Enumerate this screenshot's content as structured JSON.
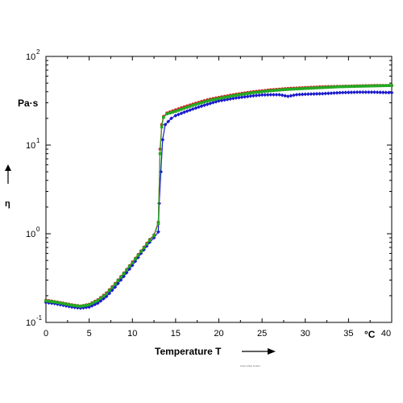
{
  "chart_data": {
    "type": "line",
    "title": "",
    "xlabel": "Temperature T",
    "ylabel": "η",
    "y_unit": "Pa·s",
    "x_unit": "°C",
    "xlim": [
      0,
      40
    ],
    "ylim": [
      0.1,
      100
    ],
    "y_scale": "log",
    "grid": false,
    "legend": "none",
    "x_ticks": [
      0,
      5,
      10,
      15,
      20,
      25,
      30,
      35,
      40
    ],
    "x_tick_labels": [
      "0",
      "5",
      "10",
      "15",
      "20",
      "25",
      "30",
      "35",
      "40"
    ],
    "y_decades": [
      {
        "value": 0.1,
        "base": "10",
        "exp": "-1"
      },
      {
        "value": 1,
        "base": "10",
        "exp": "0"
      },
      {
        "value": 10,
        "base": "10",
        "exp": "1"
      },
      {
        "value": 100,
        "base": "10",
        "exp": "2"
      }
    ],
    "credit_text": "Anton Paar GmbH",
    "series": [
      {
        "color": "#1a1acc",
        "marker": "diamond",
        "points": [
          [
            0,
            0.168
          ],
          [
            1,
            0.163
          ],
          [
            2,
            0.156
          ],
          [
            3,
            0.149
          ],
          [
            4,
            0.145
          ],
          [
            5,
            0.149
          ],
          [
            6,
            0.165
          ],
          [
            7,
            0.196
          ],
          [
            8,
            0.25
          ],
          [
            9,
            0.33
          ],
          [
            10,
            0.44
          ],
          [
            11,
            0.6
          ],
          [
            12,
            0.8
          ],
          [
            12.5,
            0.9
          ],
          [
            13,
            1.05
          ],
          [
            13.1,
            2.2
          ],
          [
            13.3,
            5.0
          ],
          [
            13.5,
            11.5
          ],
          [
            13.8,
            17
          ],
          [
            14.5,
            20
          ],
          [
            15,
            21.5
          ],
          [
            16,
            23.5
          ],
          [
            17,
            25.5
          ],
          [
            18,
            27.5
          ],
          [
            19,
            29.5
          ],
          [
            20,
            31.5
          ],
          [
            22,
            34
          ],
          [
            24,
            36
          ],
          [
            25,
            36.8
          ],
          [
            26,
            37
          ],
          [
            27,
            37
          ],
          [
            28,
            35.5
          ],
          [
            29,
            37
          ],
          [
            30,
            37.5
          ],
          [
            32,
            38
          ],
          [
            34,
            39
          ],
          [
            36,
            39.5
          ],
          [
            38,
            39.5
          ],
          [
            40,
            39
          ]
        ]
      },
      {
        "color": "#cc2222",
        "marker": "circle",
        "points": [
          [
            0,
            0.178
          ],
          [
            1,
            0.172
          ],
          [
            2,
            0.165
          ],
          [
            3,
            0.158
          ],
          [
            4,
            0.153
          ],
          [
            5,
            0.16
          ],
          [
            6,
            0.18
          ],
          [
            7,
            0.215
          ],
          [
            8,
            0.275
          ],
          [
            9,
            0.36
          ],
          [
            10,
            0.48
          ],
          [
            11,
            0.64
          ],
          [
            12,
            0.86
          ],
          [
            12.5,
            0.97
          ],
          [
            13,
            1.35
          ],
          [
            13.2,
            9
          ],
          [
            13.4,
            17
          ],
          [
            13.6,
            21
          ],
          [
            14,
            23
          ],
          [
            15,
            25
          ],
          [
            16,
            27
          ],
          [
            17,
            29
          ],
          [
            18,
            31
          ],
          [
            19,
            33
          ],
          [
            20,
            34.5
          ],
          [
            22,
            37.5
          ],
          [
            24,
            40
          ],
          [
            26,
            42
          ],
          [
            28,
            43.5
          ],
          [
            30,
            44.5
          ],
          [
            32,
            45.5
          ],
          [
            34,
            46
          ],
          [
            36,
            46.5
          ],
          [
            38,
            47
          ],
          [
            40,
            47
          ]
        ]
      },
      {
        "color": "#22aa22",
        "marker": "square",
        "points": [
          [
            0,
            0.175
          ],
          [
            1,
            0.17
          ],
          [
            2,
            0.163
          ],
          [
            3,
            0.156
          ],
          [
            4,
            0.152
          ],
          [
            5,
            0.158
          ],
          [
            6,
            0.177
          ],
          [
            7,
            0.21
          ],
          [
            8,
            0.27
          ],
          [
            9,
            0.355
          ],
          [
            10,
            0.47
          ],
          [
            11,
            0.63
          ],
          [
            12,
            0.84
          ],
          [
            12.5,
            0.95
          ],
          [
            13,
            1.3
          ],
          [
            13.2,
            8
          ],
          [
            13.4,
            16
          ],
          [
            13.6,
            20.5
          ],
          [
            14,
            22.5
          ],
          [
            15,
            24
          ],
          [
            16,
            26
          ],
          [
            17,
            28
          ],
          [
            18,
            30
          ],
          [
            19,
            32
          ],
          [
            20,
            33.5
          ],
          [
            22,
            36.5
          ],
          [
            24,
            39
          ],
          [
            26,
            41
          ],
          [
            28,
            42.5
          ],
          [
            30,
            43.5
          ],
          [
            32,
            44.5
          ],
          [
            34,
            45.5
          ],
          [
            36,
            46
          ],
          [
            38,
            46.5
          ],
          [
            40,
            47
          ]
        ]
      }
    ]
  }
}
